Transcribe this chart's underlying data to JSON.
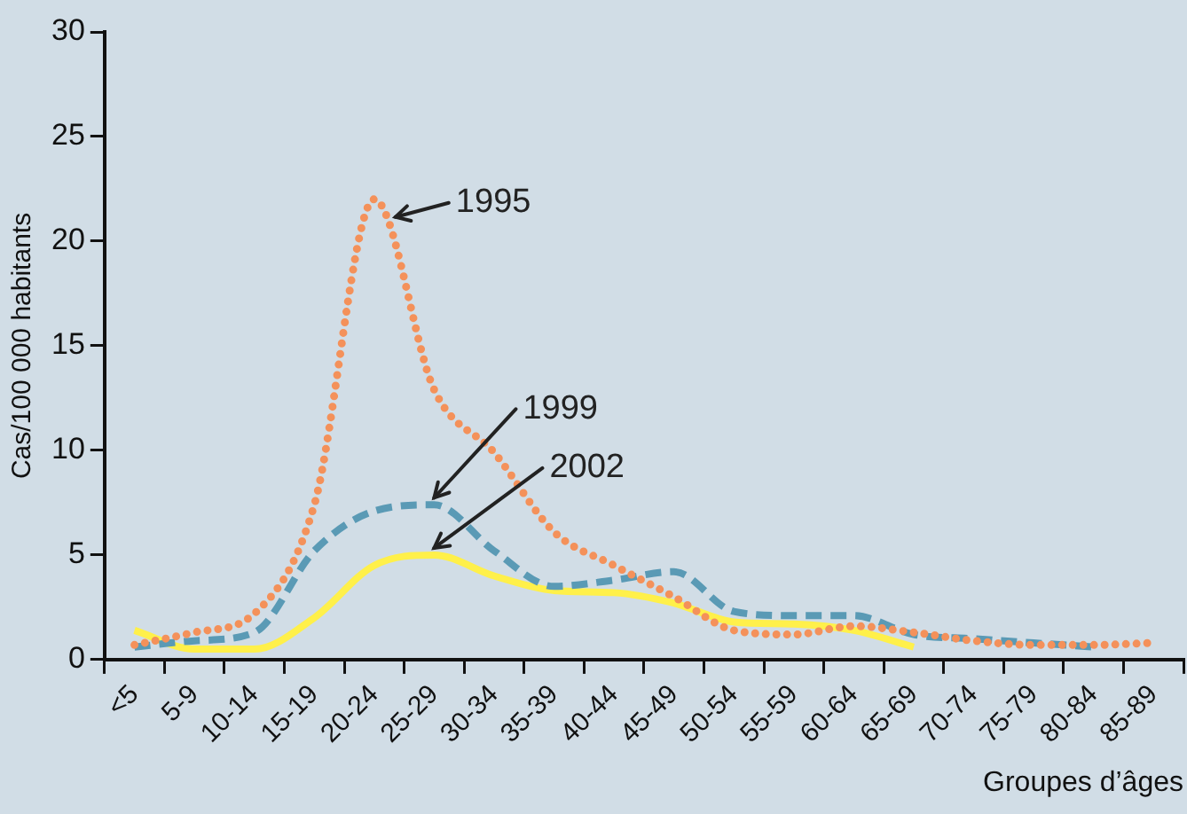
{
  "chart_data": {
    "type": "line",
    "xlabel": "Groupes d’âges",
    "ylabel": "Cas/100 000 habitants",
    "categories": [
      "<5",
      "5-9",
      "10-14",
      "15-19",
      "20-24",
      "25-29",
      "30-34",
      "35-39",
      "40-44",
      "45-49",
      "50-54",
      "55-59",
      "60-64",
      "65-69",
      "70-74",
      "75-79",
      "80-84",
      "85-89"
    ],
    "ylim": [
      0,
      30
    ],
    "yticks": [
      0,
      5,
      10,
      15,
      20,
      25,
      30
    ],
    "grid": false,
    "legend": false,
    "marker": "none",
    "series": [
      {
        "name": "1995",
        "color": "#f4915a",
        "line_style": "dotted",
        "values": [
          0.7,
          1.3,
          2.2,
          7.4,
          22,
          12.9,
          9.9,
          6.1,
          4.5,
          3.0,
          1.4,
          1.2,
          1.6,
          1.3,
          0.9,
          0.7,
          0.7,
          0.8
        ]
      },
      {
        "name": "1999",
        "color": "#5a9ab5",
        "line_style": "dashed",
        "values": [
          0.6,
          0.9,
          1.3,
          5.2,
          7.1,
          7.4,
          5.2,
          3.5,
          3.8,
          4.2,
          2.3,
          2.1,
          2.1,
          1.2,
          1.0,
          0.8,
          0.6,
          null
        ]
      },
      {
        "name": "2002",
        "color": "#fff04a",
        "line_style": "solid",
        "values": [
          1.4,
          0.5,
          0.5,
          2.0,
          4.5,
          5.0,
          4.0,
          3.3,
          3.2,
          2.7,
          1.8,
          1.7,
          1.4,
          0.6,
          null,
          null,
          null,
          null
        ]
      }
    ]
  }
}
